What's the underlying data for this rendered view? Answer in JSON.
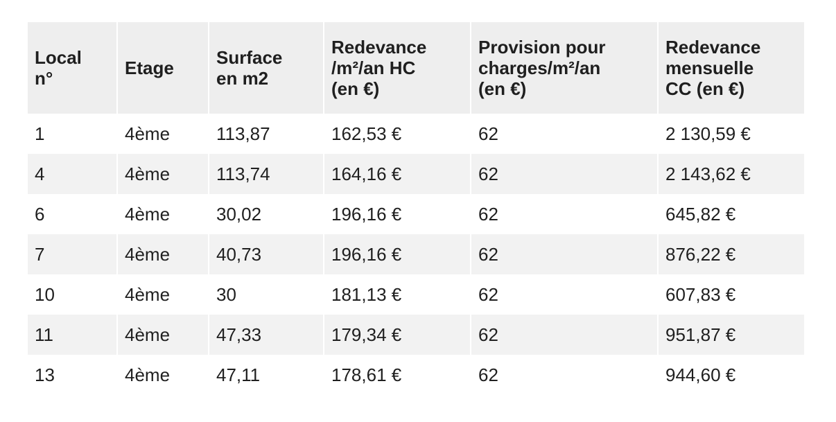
{
  "table": {
    "headers": [
      "Local\nn°",
      "Etage",
      "Surface\nen m2",
      "Redevance\n/m²/an HC\n(en €)",
      "Provision pour\ncharges/m²/an\n(en €)",
      "Redevance\nmensuelle\nCC (en €)"
    ],
    "rows": [
      [
        "1",
        "4ème",
        "113,87",
        "162,53 €",
        "62",
        "2 130,59 €"
      ],
      [
        "4",
        "4ème",
        "113,74",
        "164,16 €",
        "62",
        "2 143,62 €"
      ],
      [
        "6",
        "4ème",
        "30,02",
        "196,16 €",
        "62",
        "645,82 €"
      ],
      [
        "7",
        "4ème",
        "40,73",
        "196,16 €",
        "62",
        "876,22 €"
      ],
      [
        "10",
        "4ème",
        "30",
        "181,13 €",
        "62",
        "607,83 €"
      ],
      [
        "11",
        "4ème",
        "47,33",
        "179,34 €",
        "62",
        "951,87 €"
      ],
      [
        "13",
        "4ème",
        "47,11",
        "178,61 €",
        "62",
        "944,60 €"
      ]
    ]
  }
}
